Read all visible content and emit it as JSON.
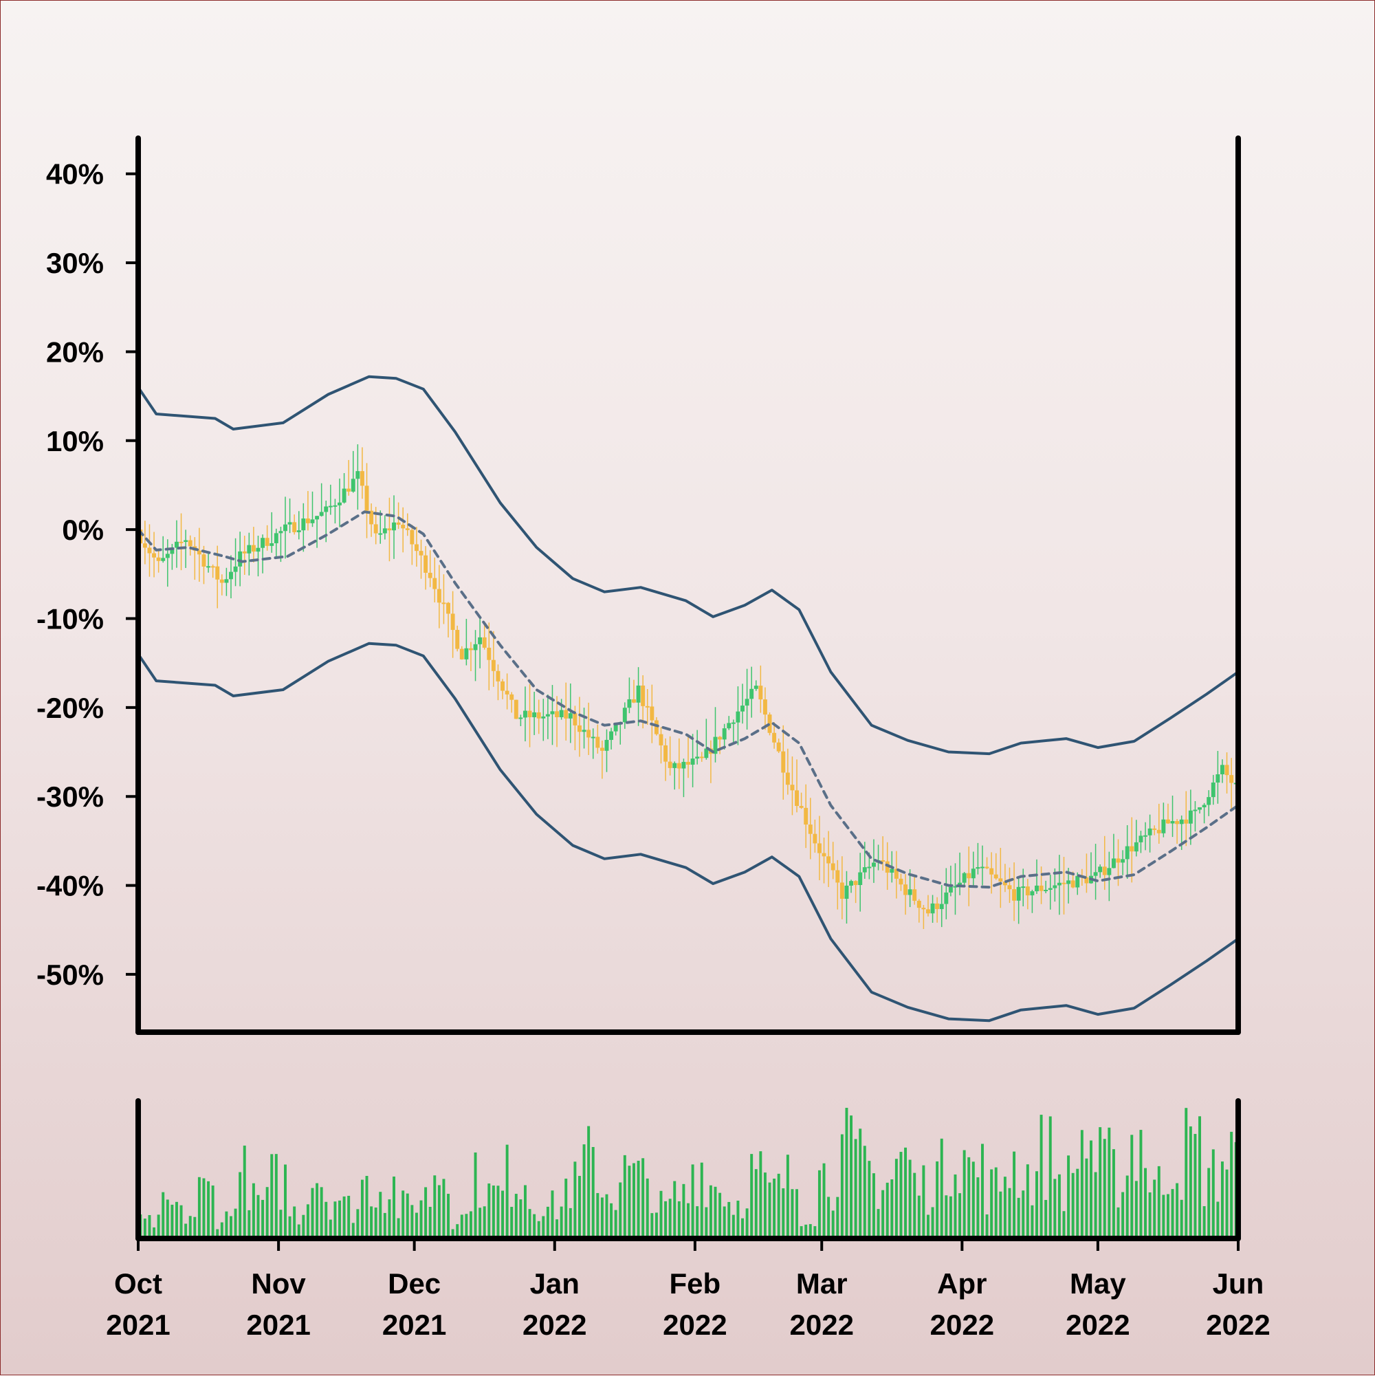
{
  "chart_data": [
    {
      "type": "candlestick",
      "title": "",
      "xlabel": "",
      "ylabel": "",
      "x_range": [
        "2021-10-01",
        "2022-06-01"
      ],
      "ylim": [
        -0.565,
        0.44
      ],
      "y_ticks": [
        0.4,
        0.3,
        0.2,
        0.1,
        0.0,
        -0.1,
        -0.2,
        -0.3,
        -0.4,
        -0.5
      ],
      "y_tick_labels": [
        "40%",
        "30%",
        "20%",
        "10%",
        "0%",
        "-10%",
        "-20%",
        "-30%",
        "-40%",
        "-50%"
      ],
      "x_ticks": [
        {
          "date": "2021-10-01",
          "month": "Oct",
          "year": "2021"
        },
        {
          "date": "2021-11-01",
          "month": "Nov",
          "year": "2021"
        },
        {
          "date": "2021-12-01",
          "month": "Dec",
          "year": "2021"
        },
        {
          "date": "2022-01-01",
          "month": "Jan",
          "year": "2022"
        },
        {
          "date": "2022-02-01",
          "month": "Feb",
          "year": "2022"
        },
        {
          "date": "2022-03-01",
          "month": "Mar",
          "year": "2022"
        },
        {
          "date": "2022-04-01",
          "month": "Apr",
          "year": "2022"
        },
        {
          "date": "2022-05-01",
          "month": "May",
          "year": "2022"
        },
        {
          "date": "2022-06-01",
          "month": "Jun",
          "year": "2022"
        }
      ],
      "grid": false,
      "colors": {
        "up": "#3ec46d",
        "down": "#f2b843",
        "band": "#2f5473",
        "mid_band": "#5a6f88",
        "volume": "#2db552",
        "axis": "#000000"
      },
      "close_anchors": [
        {
          "date": "2021-10-01",
          "close": 0.0
        },
        {
          "date": "2021-10-06",
          "close": -0.04
        },
        {
          "date": "2021-10-12",
          "close": -0.01
        },
        {
          "date": "2021-10-20",
          "close": -0.06
        },
        {
          "date": "2021-10-24",
          "close": -0.03
        },
        {
          "date": "2021-11-03",
          "close": 0.0
        },
        {
          "date": "2021-11-12",
          "close": 0.02
        },
        {
          "date": "2021-11-19",
          "close": 0.06
        },
        {
          "date": "2021-11-23",
          "close": -0.01
        },
        {
          "date": "2021-11-28",
          "close": 0.01
        },
        {
          "date": "2021-12-05",
          "close": -0.05
        },
        {
          "date": "2021-12-12",
          "close": -0.14
        },
        {
          "date": "2021-12-16",
          "close": -0.12
        },
        {
          "date": "2021-12-24",
          "close": -0.21
        },
        {
          "date": "2022-01-05",
          "close": -0.21
        },
        {
          "date": "2022-01-12",
          "close": -0.25
        },
        {
          "date": "2022-01-20",
          "close": -0.18
        },
        {
          "date": "2022-01-27",
          "close": -0.27
        },
        {
          "date": "2022-02-03",
          "close": -0.26
        },
        {
          "date": "2022-02-10",
          "close": -0.21
        },
        {
          "date": "2022-02-15",
          "close": -0.18
        },
        {
          "date": "2022-02-22",
          "close": -0.28
        },
        {
          "date": "2022-02-28",
          "close": -0.35
        },
        {
          "date": "2022-03-06",
          "close": -0.41
        },
        {
          "date": "2022-03-14",
          "close": -0.37
        },
        {
          "date": "2022-03-19",
          "close": -0.4
        },
        {
          "date": "2022-03-25",
          "close": -0.43
        },
        {
          "date": "2022-04-05",
          "close": -0.38
        },
        {
          "date": "2022-04-13",
          "close": -0.41
        },
        {
          "date": "2022-04-22",
          "close": -0.4
        },
        {
          "date": "2022-05-01",
          "close": -0.39
        },
        {
          "date": "2022-05-08",
          "close": -0.36
        },
        {
          "date": "2022-05-17",
          "close": -0.33
        },
        {
          "date": "2022-05-23",
          "close": -0.32
        },
        {
          "date": "2022-05-29",
          "close": -0.27
        },
        {
          "date": "2022-06-01",
          "close": -0.29
        }
      ],
      "bands": [
        {
          "name": "upper",
          "style": "solid",
          "points": [
            {
              "date": "2021-10-01",
              "value": 0.16
            },
            {
              "date": "2021-10-05",
              "value": 0.13
            },
            {
              "date": "2021-10-18",
              "value": 0.125
            },
            {
              "date": "2021-10-22",
              "value": 0.113
            },
            {
              "date": "2021-11-02",
              "value": 0.12
            },
            {
              "date": "2021-11-12",
              "value": 0.152
            },
            {
              "date": "2021-11-21",
              "value": 0.172
            },
            {
              "date": "2021-11-27",
              "value": 0.17
            },
            {
              "date": "2021-12-03",
              "value": 0.158
            },
            {
              "date": "2021-12-10",
              "value": 0.11
            },
            {
              "date": "2021-12-20",
              "value": 0.03
            },
            {
              "date": "2021-12-28",
              "value": -0.02
            },
            {
              "date": "2022-01-05",
              "value": -0.055
            },
            {
              "date": "2022-01-12",
              "value": -0.07
            },
            {
              "date": "2022-01-20",
              "value": -0.065
            },
            {
              "date": "2022-01-30",
              "value": -0.08
            },
            {
              "date": "2022-02-05",
              "value": -0.098
            },
            {
              "date": "2022-02-12",
              "value": -0.085
            },
            {
              "date": "2022-02-18",
              "value": -0.068
            },
            {
              "date": "2022-02-24",
              "value": -0.09
            },
            {
              "date": "2022-03-03",
              "value": -0.16
            },
            {
              "date": "2022-03-12",
              "value": -0.22
            },
            {
              "date": "2022-03-20",
              "value": -0.237
            },
            {
              "date": "2022-03-29",
              "value": -0.25
            },
            {
              "date": "2022-04-07",
              "value": -0.252
            },
            {
              "date": "2022-04-14",
              "value": -0.24
            },
            {
              "date": "2022-04-24",
              "value": -0.235
            },
            {
              "date": "2022-05-01",
              "value": -0.245
            },
            {
              "date": "2022-05-09",
              "value": -0.238
            },
            {
              "date": "2022-05-17",
              "value": -0.212
            },
            {
              "date": "2022-05-25",
              "value": -0.185
            },
            {
              "date": "2022-06-01",
              "value": -0.16
            }
          ]
        },
        {
          "name": "middle",
          "style": "dashed",
          "points": [
            {
              "date": "2021-10-01",
              "value": 0.0
            },
            {
              "date": "2021-10-05",
              "value": -0.023
            },
            {
              "date": "2021-10-12",
              "value": -0.02
            },
            {
              "date": "2021-10-20",
              "value": -0.03
            },
            {
              "date": "2021-10-24",
              "value": -0.036
            },
            {
              "date": "2021-11-03",
              "value": -0.03
            },
            {
              "date": "2021-11-12",
              "value": -0.005
            },
            {
              "date": "2021-11-20",
              "value": 0.02
            },
            {
              "date": "2021-11-27",
              "value": 0.015
            },
            {
              "date": "2021-12-03",
              "value": -0.005
            },
            {
              "date": "2021-12-10",
              "value": -0.06
            },
            {
              "date": "2021-12-20",
              "value": -0.13
            },
            {
              "date": "2021-12-28",
              "value": -0.18
            },
            {
              "date": "2022-01-05",
              "value": -0.205
            },
            {
              "date": "2022-01-12",
              "value": -0.22
            },
            {
              "date": "2022-01-20",
              "value": -0.215
            },
            {
              "date": "2022-01-30",
              "value": -0.23
            },
            {
              "date": "2022-02-05",
              "value": -0.25
            },
            {
              "date": "2022-02-12",
              "value": -0.235
            },
            {
              "date": "2022-02-18",
              "value": -0.217
            },
            {
              "date": "2022-02-24",
              "value": -0.24
            },
            {
              "date": "2022-03-03",
              "value": -0.31
            },
            {
              "date": "2022-03-12",
              "value": -0.37
            },
            {
              "date": "2022-03-20",
              "value": -0.387
            },
            {
              "date": "2022-03-29",
              "value": -0.4
            },
            {
              "date": "2022-04-07",
              "value": -0.402
            },
            {
              "date": "2022-04-14",
              "value": -0.39
            },
            {
              "date": "2022-04-24",
              "value": -0.385
            },
            {
              "date": "2022-05-01",
              "value": -0.395
            },
            {
              "date": "2022-05-09",
              "value": -0.388
            },
            {
              "date": "2022-05-17",
              "value": -0.362
            },
            {
              "date": "2022-05-25",
              "value": -0.335
            },
            {
              "date": "2022-06-01",
              "value": -0.31
            }
          ]
        },
        {
          "name": "lower",
          "style": "solid",
          "points": [
            {
              "date": "2021-10-01",
              "value": -0.14
            },
            {
              "date": "2021-10-05",
              "value": -0.17
            },
            {
              "date": "2021-10-18",
              "value": -0.175
            },
            {
              "date": "2021-10-22",
              "value": -0.187
            },
            {
              "date": "2021-11-02",
              "value": -0.18
            },
            {
              "date": "2021-11-12",
              "value": -0.148
            },
            {
              "date": "2021-11-21",
              "value": -0.128
            },
            {
              "date": "2021-11-27",
              "value": -0.13
            },
            {
              "date": "2021-12-03",
              "value": -0.142
            },
            {
              "date": "2021-12-10",
              "value": -0.19
            },
            {
              "date": "2021-12-20",
              "value": -0.27
            },
            {
              "date": "2021-12-28",
              "value": -0.32
            },
            {
              "date": "2022-01-05",
              "value": -0.355
            },
            {
              "date": "2022-01-12",
              "value": -0.37
            },
            {
              "date": "2022-01-20",
              "value": -0.365
            },
            {
              "date": "2022-01-30",
              "value": -0.38
            },
            {
              "date": "2022-02-05",
              "value": -0.398
            },
            {
              "date": "2022-02-12",
              "value": -0.385
            },
            {
              "date": "2022-02-18",
              "value": -0.368
            },
            {
              "date": "2022-02-24",
              "value": -0.39
            },
            {
              "date": "2022-03-03",
              "value": -0.46
            },
            {
              "date": "2022-03-12",
              "value": -0.52
            },
            {
              "date": "2022-03-20",
              "value": -0.537
            },
            {
              "date": "2022-03-29",
              "value": -0.55
            },
            {
              "date": "2022-04-07",
              "value": -0.552
            },
            {
              "date": "2022-04-14",
              "value": -0.54
            },
            {
              "date": "2022-04-24",
              "value": -0.535
            },
            {
              "date": "2022-05-01",
              "value": -0.545
            },
            {
              "date": "2022-05-09",
              "value": -0.538
            },
            {
              "date": "2022-05-17",
              "value": -0.512
            },
            {
              "date": "2022-05-25",
              "value": -0.485
            },
            {
              "date": "2022-06-01",
              "value": -0.46
            }
          ]
        }
      ]
    },
    {
      "type": "bar",
      "title": "",
      "xlabel": "",
      "ylabel": "",
      "series": [
        {
          "values": [
            0.15,
            0.3,
            0.22,
            0.45,
            0.2,
            0.6,
            0.35,
            0.55,
            0.25,
            0.62,
            0.4,
            0.3,
            0.52,
            0.5,
            0.3,
            0.4,
            0.65,
            0.2,
            0.55,
            0.42,
            0.6,
            0.35,
            0.3,
            0.5,
            0.72,
            0.45,
            0.6,
            0.55,
            0.3,
            0.4,
            0.68,
            0.5,
            0.35,
            0.62,
            0.45,
            0.55,
            0.25,
            0.6,
            0.82,
            0.7,
            0.55,
            0.75,
            0.5,
            0.62,
            0.9,
            0.65,
            0.48,
            0.72,
            0.6,
            0.8,
            0.55,
            0.92,
            0.7,
            0.6,
            0.95,
            0.5,
            0.75,
            0.85,
            0.6,
            0.78
          ]
        }
      ],
      "ylim": [
        0,
        1.0
      ],
      "x_range": [
        "2021-10-01",
        "2022-06-01"
      ]
    }
  ],
  "tick_style": {
    "month_year_separator": "newline"
  }
}
